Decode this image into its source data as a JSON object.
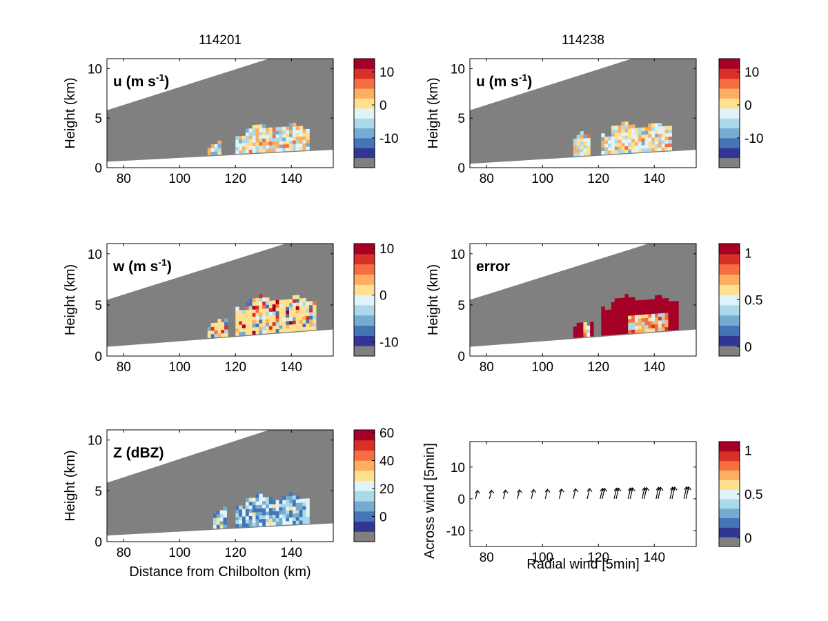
{
  "figure": {
    "column_titles": [
      "114201",
      "114238"
    ],
    "colormap": [
      "#808080",
      "#313695",
      "#4575b4",
      "#74add1",
      "#abd9e9",
      "#e0f3f8",
      "#fee090",
      "#fdae61",
      "#f46d43",
      "#d73027",
      "#a50026"
    ],
    "colors": {
      "blank_region": "#808080",
      "background": "#ffffff"
    }
  },
  "chart_data": [
    {
      "id": "u-114201",
      "type": "heatmap",
      "column_title": "114201",
      "annotation": "u (m s",
      "annotation_sup": "-1",
      "annotation_close": ")",
      "ylabel": "Height (km)",
      "xlabel": "",
      "xlim": [
        74,
        155
      ],
      "ylim": [
        0,
        11
      ],
      "xticks": [
        "80",
        "100",
        "120",
        "140"
      ],
      "yticks": [
        "0",
        "5",
        "10"
      ],
      "beam_bottom": [
        [
          74,
          0.6
        ],
        [
          155,
          1.8
        ]
      ],
      "beam_top": [
        [
          74,
          5.8
        ],
        [
          132,
          11
        ]
      ],
      "echoes": [
        {
          "x": [
            110,
            114
          ],
          "ybase": 1.4,
          "ytop": 2.6,
          "level": 0.45
        },
        {
          "x": [
            120,
            146
          ],
          "ybase": 1.7,
          "ytop": 4.4,
          "level": 0.5
        }
      ],
      "colorbar": {
        "ticks": [
          "10",
          "0",
          "-10"
        ],
        "tick_values": [
          10,
          0,
          -10
        ],
        "range": [
          -19,
          14
        ]
      }
    },
    {
      "id": "u-114238",
      "type": "heatmap",
      "column_title": "114238",
      "annotation": "u (m s",
      "annotation_sup": "-1",
      "annotation_close": ")",
      "ylabel": "Height (km)",
      "xlabel": "",
      "xlim": [
        74,
        155
      ],
      "ylim": [
        0,
        11
      ],
      "xticks": [
        "80",
        "100",
        "120",
        "140"
      ],
      "yticks": [
        "0",
        "5",
        "10"
      ],
      "beam_bottom": [
        [
          74,
          0.4
        ],
        [
          155,
          1.8
        ]
      ],
      "beam_top": [
        [
          74,
          5.8
        ],
        [
          132,
          11
        ]
      ],
      "echoes": [
        {
          "x": [
            111,
            117
          ],
          "ybase": 1.3,
          "ytop": 3.6,
          "level": 0.5
        },
        {
          "x": [
            121,
            146
          ],
          "ybase": 1.7,
          "ytop": 4.5,
          "level": 0.5
        }
      ],
      "colorbar": {
        "ticks": [
          "10",
          "0",
          "-10"
        ],
        "tick_values": [
          10,
          0,
          -10
        ],
        "range": [
          -19,
          14
        ]
      }
    },
    {
      "id": "w-114201",
      "type": "heatmap",
      "annotation": "w (m s",
      "annotation_sup": "-1",
      "annotation_close": ")",
      "ylabel": "Height (km)",
      "xlabel": "",
      "xlim": [
        74,
        155
      ],
      "ylim": [
        0,
        11
      ],
      "xticks": [
        "80",
        "100",
        "120",
        "140"
      ],
      "yticks": [
        "0",
        "5",
        "10"
      ],
      "beam_bottom": [
        [
          74,
          0.9
        ],
        [
          155,
          2.6
        ]
      ],
      "beam_top": [
        [
          74,
          5.5
        ],
        [
          138,
          11
        ]
      ],
      "echoes": [
        {
          "x": [
            110,
            117
          ],
          "ybase": 1.8,
          "ytop": 3.6,
          "level": 0.55
        },
        {
          "x": [
            120,
            148
          ],
          "ybase": 2.0,
          "ytop": 5.8,
          "level": 0.55
        }
      ],
      "colorbar": {
        "ticks": [
          "10",
          "0",
          "-10"
        ],
        "tick_values": [
          10,
          0,
          -10
        ],
        "range": [
          -13,
          11
        ]
      }
    },
    {
      "id": "error-114238",
      "type": "heatmap",
      "annotation": "error",
      "annotation_sup": "",
      "annotation_close": "",
      "ylabel": "Height (km)",
      "xlabel": "",
      "xlim": [
        74,
        155
      ],
      "ylim": [
        0,
        11
      ],
      "xticks": [
        "80",
        "100",
        "120",
        "140"
      ],
      "yticks": [
        "0",
        "5",
        "10"
      ],
      "beam_bottom": [
        [
          74,
          0.9
        ],
        [
          155,
          2.6
        ]
      ],
      "beam_top": [
        [
          74,
          5.5
        ],
        [
          138,
          11
        ]
      ],
      "echoes": [
        {
          "x": [
            111,
            118
          ],
          "ybase": 1.8,
          "ytop": 3.5,
          "level": 1.0
        },
        {
          "x": [
            121,
            148
          ],
          "ybase": 2.0,
          "ytop": 5.8,
          "level": 1.0
        }
      ],
      "colorbar": {
        "ticks": [
          "1",
          "0.5",
          "0"
        ],
        "tick_values": [
          1,
          0.5,
          0
        ],
        "range": [
          -0.1,
          1.1
        ]
      }
    },
    {
      "id": "z-114201",
      "type": "heatmap",
      "annotation": "Z (dBZ)",
      "annotation_sup": "",
      "annotation_close": "",
      "ylabel": "Height (km)",
      "xlabel": "Distance from Chilbolton (km)",
      "xlim": [
        74,
        155
      ],
      "ylim": [
        0,
        11
      ],
      "xticks": [
        "80",
        "100",
        "120",
        "140"
      ],
      "yticks": [
        "0",
        "5",
        "10"
      ],
      "beam_bottom": [
        [
          74,
          0.6
        ],
        [
          155,
          1.8
        ]
      ],
      "beam_top": [
        [
          74,
          5.8
        ],
        [
          132,
          11
        ]
      ],
      "echoes": [
        {
          "x": [
            112,
            116
          ],
          "ybase": 1.3,
          "ytop": 3.4,
          "level": 0.3
        },
        {
          "x": [
            120,
            146
          ],
          "ybase": 1.7,
          "ytop": 4.6,
          "level": 0.3
        }
      ],
      "colorbar": {
        "ticks": [
          "60",
          "40",
          "20",
          "0"
        ],
        "tick_values": [
          60,
          40,
          20,
          0
        ],
        "range": [
          -18,
          62
        ]
      }
    },
    {
      "id": "wind-quiver",
      "type": "scatter",
      "annotation": "",
      "ylabel": "Across wind [5min]",
      "xlabel": "Radial wind [5min]",
      "xlim": [
        74,
        155
      ],
      "ylim": [
        -15,
        18
      ],
      "xticks": [
        "80",
        "100",
        "120",
        "140"
      ],
      "yticks": [
        "-10",
        "0",
        "10"
      ],
      "tick_values_y": [
        -10,
        0,
        10
      ],
      "arrows_x": [
        76,
        81,
        86,
        91,
        96,
        101,
        106,
        111,
        116,
        121,
        126,
        131,
        136,
        141,
        146,
        151
      ],
      "arrows_y": [
        0,
        0,
        0,
        0,
        0,
        0,
        0,
        0,
        0,
        0,
        0,
        0,
        0,
        0,
        0,
        0
      ],
      "arrow_count": [
        1,
        1,
        1,
        1,
        1,
        1,
        1,
        1,
        1,
        2,
        2,
        2,
        2,
        2,
        2,
        2
      ],
      "colorbar": {
        "ticks": [
          "1",
          "0.5",
          "0"
        ],
        "tick_values": [
          1,
          0.5,
          0
        ],
        "range": [
          -0.1,
          1.1
        ]
      }
    }
  ]
}
